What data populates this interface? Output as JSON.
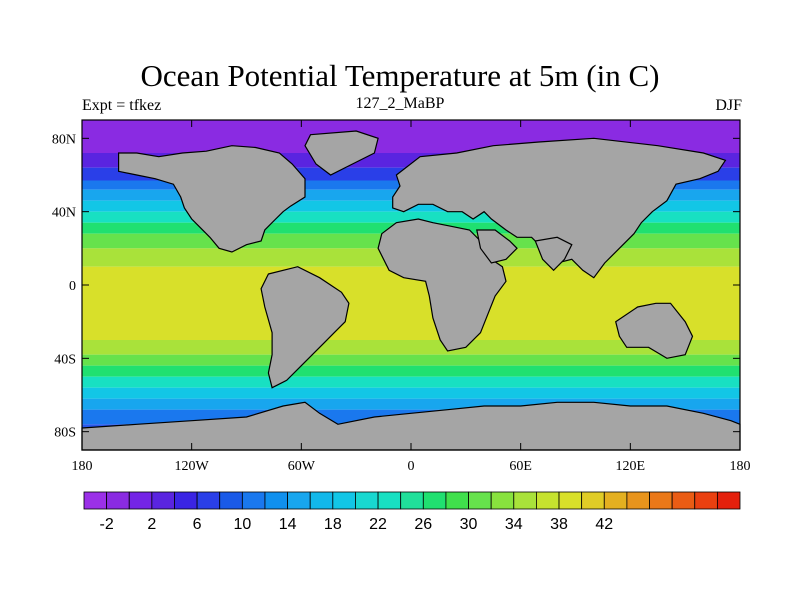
{
  "title": "Ocean Potential Temperature at 5m (in C)",
  "subtitle_left": "Expt = tfkez",
  "subtitle_center": "127_2_MaBP",
  "subtitle_right": "DJF",
  "map": {
    "lon_range": [
      -180,
      180
    ],
    "lat_range": [
      -90,
      90
    ],
    "x_ticks": [
      {
        "value": -180,
        "label": "180"
      },
      {
        "value": -120,
        "label": "120W"
      },
      {
        "value": -60,
        "label": "60W"
      },
      {
        "value": 0,
        "label": "0"
      },
      {
        "value": 60,
        "label": "60E"
      },
      {
        "value": 120,
        "label": "120E"
      },
      {
        "value": 180,
        "label": "180"
      }
    ],
    "y_ticks": [
      {
        "value": 80,
        "label": "80N"
      },
      {
        "value": 40,
        "label": "40N"
      },
      {
        "value": 0,
        "label": "0"
      },
      {
        "value": -40,
        "label": "40S"
      },
      {
        "value": -80,
        "label": "80S"
      }
    ],
    "land_color": "#a5a5a5",
    "bands": [
      {
        "lat_max": 90,
        "lat_min": 72,
        "color": "#8a2be2"
      },
      {
        "lat_max": 72,
        "lat_min": 64,
        "color": "#5a24e0"
      },
      {
        "lat_max": 64,
        "lat_min": 57,
        "color": "#2a3fe8"
      },
      {
        "lat_max": 57,
        "lat_min": 52,
        "color": "#1a78ee"
      },
      {
        "lat_max": 52,
        "lat_min": 46,
        "color": "#18a6ee"
      },
      {
        "lat_max": 46,
        "lat_min": 40,
        "color": "#12c6e6"
      },
      {
        "lat_max": 40,
        "lat_min": 34,
        "color": "#18e0c2"
      },
      {
        "lat_max": 34,
        "lat_min": 28,
        "color": "#20e070"
      },
      {
        "lat_max": 28,
        "lat_min": 20,
        "color": "#66e24c"
      },
      {
        "lat_max": 20,
        "lat_min": 10,
        "color": "#a9e23a"
      },
      {
        "lat_max": 10,
        "lat_min": -30,
        "color": "#d8e02a"
      },
      {
        "lat_max": -30,
        "lat_min": -38,
        "color": "#a9e23a"
      },
      {
        "lat_max": -38,
        "lat_min": -44,
        "color": "#66e24c"
      },
      {
        "lat_max": -44,
        "lat_min": -50,
        "color": "#20e070"
      },
      {
        "lat_max": -50,
        "lat_min": -56,
        "color": "#18e0c2"
      },
      {
        "lat_max": -56,
        "lat_min": -62,
        "color": "#12c6e6"
      },
      {
        "lat_max": -62,
        "lat_min": -68,
        "color": "#18a6ee"
      },
      {
        "lat_max": -68,
        "lat_min": -76,
        "color": "#1a78ee"
      },
      {
        "lat_max": -76,
        "lat_min": -90,
        "color": "#2a58ec"
      }
    ],
    "land_polygons": [
      {
        "name": "north-america",
        "points": [
          [
            -160,
            72
          ],
          [
            -150,
            72
          ],
          [
            -138,
            70
          ],
          [
            -125,
            72
          ],
          [
            -112,
            73
          ],
          [
            -98,
            76
          ],
          [
            -85,
            75
          ],
          [
            -72,
            72
          ],
          [
            -65,
            66
          ],
          [
            -58,
            58
          ],
          [
            -58,
            48
          ],
          [
            -66,
            43
          ],
          [
            -70,
            40
          ],
          [
            -74,
            36
          ],
          [
            -80,
            30
          ],
          [
            -82,
            24
          ],
          [
            -90,
            22
          ],
          [
            -98,
            18
          ],
          [
            -105,
            20
          ],
          [
            -110,
            26
          ],
          [
            -116,
            32
          ],
          [
            -120,
            36
          ],
          [
            -124,
            42
          ],
          [
            -126,
            48
          ],
          [
            -130,
            55
          ],
          [
            -140,
            58
          ],
          [
            -150,
            60
          ],
          [
            -160,
            62
          ]
        ]
      },
      {
        "name": "south-america",
        "points": [
          [
            -78,
            6
          ],
          [
            -62,
            10
          ],
          [
            -50,
            4
          ],
          [
            -38,
            -4
          ],
          [
            -34,
            -10
          ],
          [
            -36,
            -20
          ],
          [
            -42,
            -26
          ],
          [
            -48,
            -32
          ],
          [
            -54,
            -38
          ],
          [
            -60,
            -44
          ],
          [
            -68,
            -52
          ],
          [
            -76,
            -56
          ],
          [
            -78,
            -48
          ],
          [
            -76,
            -38
          ],
          [
            -76,
            -26
          ],
          [
            -80,
            -12
          ],
          [
            -82,
            -2
          ]
        ]
      },
      {
        "name": "eurasia",
        "points": [
          [
            -8,
            60
          ],
          [
            5,
            70
          ],
          [
            25,
            72
          ],
          [
            45,
            76
          ],
          [
            70,
            78
          ],
          [
            100,
            80
          ],
          [
            135,
            76
          ],
          [
            160,
            72
          ],
          [
            172,
            68
          ],
          [
            168,
            62
          ],
          [
            158,
            58
          ],
          [
            145,
            55
          ],
          [
            140,
            46
          ],
          [
            132,
            40
          ],
          [
            126,
            34
          ],
          [
            122,
            28
          ],
          [
            114,
            20
          ],
          [
            106,
            12
          ],
          [
            100,
            4
          ],
          [
            94,
            8
          ],
          [
            88,
            14
          ],
          [
            80,
            12
          ],
          [
            72,
            20
          ],
          [
            66,
            26
          ],
          [
            58,
            26
          ],
          [
            52,
            30
          ],
          [
            44,
            36
          ],
          [
            40,
            40
          ],
          [
            34,
            36
          ],
          [
            28,
            40
          ],
          [
            20,
            40
          ],
          [
            12,
            44
          ],
          [
            4,
            44
          ],
          [
            -4,
            40
          ],
          [
            -10,
            42
          ],
          [
            -10,
            48
          ],
          [
            -6,
            54
          ]
        ]
      },
      {
        "name": "africa",
        "points": [
          [
            -18,
            20
          ],
          [
            -16,
            28
          ],
          [
            -8,
            34
          ],
          [
            4,
            36
          ],
          [
            12,
            34
          ],
          [
            22,
            32
          ],
          [
            32,
            30
          ],
          [
            40,
            22
          ],
          [
            44,
            14
          ],
          [
            50,
            10
          ],
          [
            52,
            2
          ],
          [
            46,
            -6
          ],
          [
            42,
            -16
          ],
          [
            38,
            -26
          ],
          [
            30,
            -34
          ],
          [
            20,
            -36
          ],
          [
            16,
            -30
          ],
          [
            12,
            -18
          ],
          [
            10,
            -6
          ],
          [
            8,
            2
          ],
          [
            -4,
            4
          ],
          [
            -12,
            8
          ]
        ]
      },
      {
        "name": "arabia",
        "points": [
          [
            36,
            30
          ],
          [
            46,
            30
          ],
          [
            54,
            24
          ],
          [
            58,
            20
          ],
          [
            52,
            14
          ],
          [
            44,
            12
          ],
          [
            38,
            20
          ]
        ]
      },
      {
        "name": "india",
        "points": [
          [
            68,
            24
          ],
          [
            80,
            26
          ],
          [
            88,
            22
          ],
          [
            84,
            14
          ],
          [
            78,
            8
          ],
          [
            72,
            14
          ]
        ]
      },
      {
        "name": "australia",
        "points": [
          [
            112,
            -20
          ],
          [
            124,
            -12
          ],
          [
            134,
            -10
          ],
          [
            142,
            -10
          ],
          [
            150,
            -20
          ],
          [
            154,
            -28
          ],
          [
            150,
            -38
          ],
          [
            140,
            -40
          ],
          [
            130,
            -34
          ],
          [
            118,
            -34
          ],
          [
            114,
            -28
          ]
        ]
      },
      {
        "name": "greenland",
        "points": [
          [
            -55,
            82
          ],
          [
            -30,
            84
          ],
          [
            -18,
            80
          ],
          [
            -20,
            72
          ],
          [
            -32,
            66
          ],
          [
            -44,
            60
          ],
          [
            -52,
            66
          ],
          [
            -58,
            76
          ]
        ]
      },
      {
        "name": "antarctica",
        "points": [
          [
            -180,
            -78
          ],
          [
            -150,
            -76
          ],
          [
            -120,
            -74
          ],
          [
            -90,
            -72
          ],
          [
            -70,
            -66
          ],
          [
            -58,
            -64
          ],
          [
            -50,
            -70
          ],
          [
            -40,
            -76
          ],
          [
            -20,
            -72
          ],
          [
            0,
            -70
          ],
          [
            20,
            -68
          ],
          [
            40,
            -66
          ],
          [
            60,
            -66
          ],
          [
            80,
            -64
          ],
          [
            100,
            -64
          ],
          [
            120,
            -66
          ],
          [
            140,
            -66
          ],
          [
            160,
            -70
          ],
          [
            175,
            -74
          ],
          [
            180,
            -76
          ],
          [
            180,
            -90
          ],
          [
            -180,
            -90
          ]
        ]
      }
    ]
  },
  "colorbar": {
    "colors": [
      "#9b30e8",
      "#8a2be2",
      "#7424e6",
      "#5a24e0",
      "#3a24e4",
      "#2a3fe8",
      "#1a5ae8",
      "#1a78ee",
      "#1090ee",
      "#18a6ee",
      "#12b8ea",
      "#12c6e6",
      "#18d8d0",
      "#18e0c2",
      "#20e09a",
      "#20e070",
      "#40e04c",
      "#66e24c",
      "#88e23e",
      "#a9e23a",
      "#c6e22e",
      "#d8e02a",
      "#e0cc26",
      "#e4b020",
      "#e8941c",
      "#ea7818",
      "#ea5c14",
      "#ea4010",
      "#e4200c"
    ],
    "labels": [
      "-2",
      "2",
      "6",
      "10",
      "14",
      "18",
      "22",
      "26",
      "30",
      "34",
      "38",
      "42"
    ]
  }
}
